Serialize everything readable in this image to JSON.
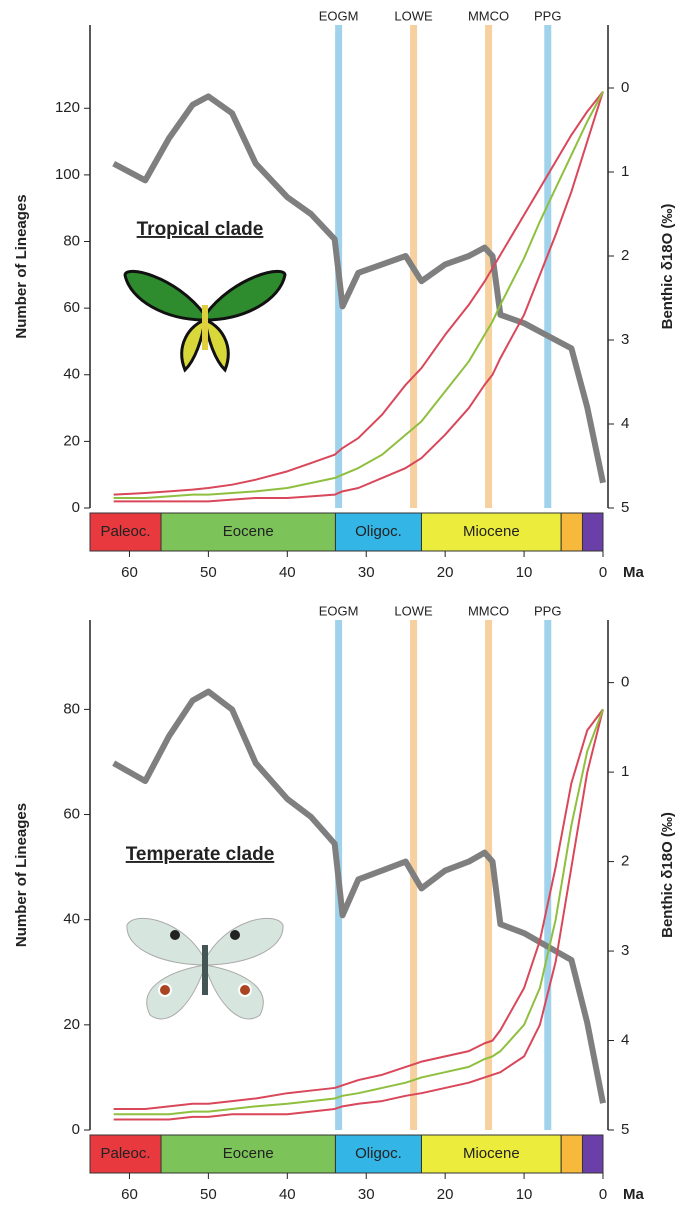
{
  "chart_data": [
    {
      "type": "line",
      "annotation": "Tropical clade",
      "x_label": "Ma",
      "y_label": "Number of Lineages",
      "y2_label": "Benthic δ18O (‰)",
      "xlim": [
        65,
        0
      ],
      "xticks": [
        60,
        50,
        40,
        30,
        20,
        10,
        0
      ],
      "ylim": [
        0,
        145
      ],
      "yticks": [
        0,
        20,
        40,
        60,
        80,
        100,
        120
      ],
      "y2lim": [
        5,
        -0.75
      ],
      "y2ticks": [
        0,
        1,
        2,
        3,
        4,
        5
      ],
      "x": [
        62,
        58,
        55,
        52,
        50,
        47,
        44,
        40,
        37,
        34,
        33,
        31,
        28,
        25,
        23,
        20,
        17,
        15,
        14,
        13,
        10,
        8,
        6,
        4,
        2,
        0
      ],
      "series": [
        {
          "color": "#7f7f7f",
          "axis": "y2",
          "values": [
            0.9,
            1.1,
            0.6,
            0.2,
            0.1,
            0.3,
            0.9,
            1.3,
            1.5,
            1.8,
            2.6,
            2.2,
            2.1,
            2.0,
            2.3,
            2.1,
            2.0,
            1.9,
            2.0,
            2.7,
            2.8,
            2.9,
            3.0,
            3.1,
            3.8,
            4.7
          ]
        },
        {
          "color": "#d9475a",
          "values": [
            4,
            4.5,
            5,
            5.5,
            6,
            7,
            8.5,
            11,
            13.5,
            16,
            18,
            21,
            28,
            37,
            42,
            52,
            61,
            68,
            72,
            76,
            88,
            96,
            104,
            112,
            119,
            125
          ]
        },
        {
          "color": "#d9475a",
          "values": [
            2,
            2,
            2,
            2,
            2,
            2.5,
            3,
            3,
            3.5,
            4,
            5,
            6,
            9,
            12,
            15,
            22,
            30,
            37,
            40,
            45,
            58,
            70,
            82,
            95,
            110,
            125
          ]
        },
        {
          "color": "#8fbf3f",
          "values": [
            3,
            3,
            3.5,
            4,
            4,
            4.5,
            5,
            6,
            7.5,
            9,
            10,
            12,
            16,
            22,
            26,
            35,
            44,
            52,
            56,
            61,
            75,
            86,
            96,
            106,
            116,
            125
          ]
        }
      ],
      "events": [
        {
          "label": "EOGM",
          "x": 33.5,
          "color": "#8fcbe8"
        },
        {
          "label": "LOWE",
          "x": 24,
          "color": "#f5c98e"
        },
        {
          "label": "MMCO",
          "x": 14.5,
          "color": "#f5c98e"
        },
        {
          "label": "PPG",
          "x": 7,
          "color": "#8fcbe8"
        }
      ],
      "epochs": [
        {
          "label": "Paleoc.",
          "start": 65,
          "end": 56,
          "color": "#e8393f"
        },
        {
          "label": "Eocene",
          "start": 56,
          "end": 33.9,
          "color": "#7cc35a"
        },
        {
          "label": "Oligoc.",
          "start": 33.9,
          "end": 23,
          "color": "#33b5e5"
        },
        {
          "label": "Miocene",
          "start": 23,
          "end": 5.3,
          "color": "#ecec3c"
        },
        {
          "start": 5.3,
          "end": 2.6,
          "color": "#f6b93b"
        },
        {
          "start": 2.6,
          "end": 0,
          "color": "#6b3fa8"
        }
      ]
    },
    {
      "type": "line",
      "annotation": "Temperate clade",
      "x_label": "Ma",
      "y_label": "Number of Lineages",
      "y2_label": "Benthic δ18O (‰)",
      "xlim": [
        65,
        0
      ],
      "xticks": [
        60,
        50,
        40,
        30,
        20,
        10,
        0
      ],
      "ylim": [
        0,
        97
      ],
      "yticks": [
        0,
        20,
        40,
        60,
        80
      ],
      "y2lim": [
        5,
        -0.7
      ],
      "y2ticks": [
        0,
        1,
        2,
        3,
        4,
        5
      ],
      "x": [
        62,
        58,
        55,
        52,
        50,
        47,
        44,
        40,
        37,
        34,
        33,
        31,
        28,
        25,
        23,
        20,
        17,
        15,
        14,
        13,
        10,
        8,
        6,
        4,
        2,
        0
      ],
      "series": [
        {
          "color": "#7f7f7f",
          "axis": "y2",
          "values": [
            0.9,
            1.1,
            0.6,
            0.2,
            0.1,
            0.3,
            0.9,
            1.3,
            1.5,
            1.8,
            2.6,
            2.2,
            2.1,
            2.0,
            2.3,
            2.1,
            2.0,
            1.9,
            2.0,
            2.7,
            2.8,
            2.9,
            3.0,
            3.1,
            3.8,
            4.7
          ]
        },
        {
          "color": "#d9475a",
          "values": [
            4,
            4,
            4.5,
            5,
            5,
            5.5,
            6,
            7,
            7.5,
            8,
            8.5,
            9.5,
            10.5,
            12,
            13,
            14,
            15,
            16.5,
            17,
            19,
            27,
            36,
            50,
            66,
            76,
            80
          ]
        },
        {
          "color": "#d9475a",
          "values": [
            2,
            2,
            2,
            2.5,
            2.5,
            3,
            3,
            3,
            3.5,
            4,
            4.5,
            5,
            5.5,
            6.5,
            7,
            8,
            9,
            10,
            10.5,
            11,
            14,
            20,
            32,
            50,
            68,
            80
          ]
        },
        {
          "color": "#8fbf3f",
          "values": [
            3,
            3,
            3,
            3.5,
            3.5,
            4,
            4.5,
            5,
            5.5,
            6,
            6.5,
            7,
            8,
            9,
            10,
            11,
            12,
            13.5,
            14,
            15,
            20,
            27,
            40,
            58,
            72,
            80
          ]
        }
      ],
      "events": [
        {
          "label": "EOGM",
          "x": 33.5,
          "color": "#8fcbe8"
        },
        {
          "label": "LOWE",
          "x": 24,
          "color": "#f5c98e"
        },
        {
          "label": "MMCO",
          "x": 14.5,
          "color": "#f5c98e"
        },
        {
          "label": "PPG",
          "x": 7,
          "color": "#8fcbe8"
        }
      ],
      "epochs": [
        {
          "label": "Paleoc.",
          "start": 65,
          "end": 56,
          "color": "#e8393f"
        },
        {
          "label": "Eocene",
          "start": 56,
          "end": 33.9,
          "color": "#7cc35a"
        },
        {
          "label": "Oligoc.",
          "start": 33.9,
          "end": 23,
          "color": "#33b5e5"
        },
        {
          "label": "Miocene",
          "start": 23,
          "end": 5.3,
          "color": "#ecec3c"
        },
        {
          "start": 5.3,
          "end": 2.6,
          "color": "#f6b93b"
        },
        {
          "start": 2.6,
          "end": 0,
          "color": "#6b3fa8"
        }
      ]
    }
  ]
}
